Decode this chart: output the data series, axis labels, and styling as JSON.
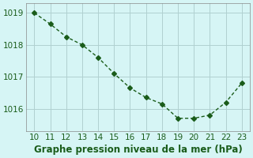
{
  "x": [
    10,
    11,
    12,
    13,
    14,
    15,
    16,
    17,
    18,
    19,
    20,
    21,
    22,
    23
  ],
  "y": [
    1019.0,
    1018.65,
    1018.25,
    1018.0,
    1017.6,
    1017.1,
    1016.65,
    1016.35,
    1016.15,
    1015.7,
    1015.7,
    1015.8,
    1016.2,
    1016.8
  ],
  "line_color": "#1a5c1a",
  "marker": "D",
  "marker_size": 3,
  "bg_color": "#d6f5f5",
  "grid_color": "#b0d0d0",
  "xlabel": "Graphe pression niveau de la mer (hPa)",
  "xlabel_color": "#1a5c1a",
  "xlabel_fontsize": 8.5,
  "tick_color": "#1a5c1a",
  "tick_fontsize": 7.5,
  "ylim": [
    1015.3,
    1019.3
  ],
  "xlim": [
    9.5,
    23.5
  ],
  "yticks": [
    1016,
    1017,
    1018,
    1019
  ],
  "xticks": [
    10,
    11,
    12,
    13,
    14,
    15,
    16,
    17,
    18,
    19,
    20,
    21,
    22,
    23
  ]
}
